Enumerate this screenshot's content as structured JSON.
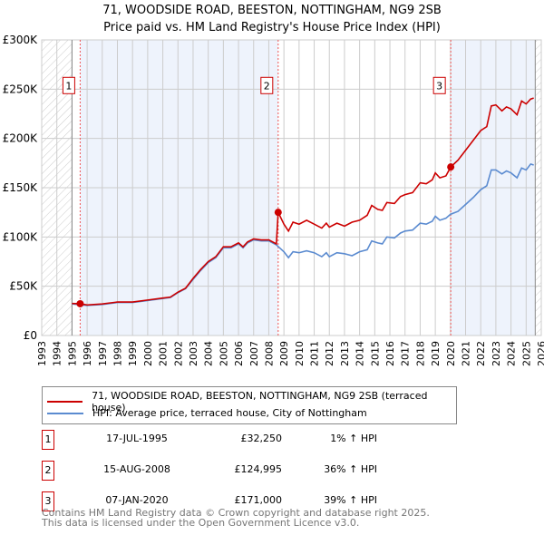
{
  "title": "71, WOODSIDE ROAD, BEESTON, NOTTINGHAM, NG9 2SB",
  "subtitle": "Price paid vs. HM Land Registry's House Price Index (HPI)",
  "chart_data": {
    "type": "line",
    "xlim": [
      1993,
      2026
    ],
    "ylim": [
      0,
      300000
    ],
    "yticks": [
      {
        "v": 0,
        "label": "£0"
      },
      {
        "v": 50000,
        "label": "£50K"
      },
      {
        "v": 100000,
        "label": "£100K"
      },
      {
        "v": 150000,
        "label": "£150K"
      },
      {
        "v": 200000,
        "label": "£200K"
      },
      {
        "v": 250000,
        "label": "£250K"
      },
      {
        "v": 300000,
        "label": "£300K"
      }
    ],
    "xticks": [
      "1993",
      "1994",
      "1995",
      "1996",
      "1997",
      "1998",
      "1999",
      "2000",
      "2001",
      "2002",
      "2003",
      "2004",
      "2005",
      "2006",
      "2007",
      "2008",
      "2009",
      "2010",
      "2011",
      "2012",
      "2013",
      "2014",
      "2015",
      "2016",
      "2017",
      "2018",
      "2019",
      "2020",
      "2021",
      "2022",
      "2023",
      "2024",
      "2025",
      "2026"
    ],
    "data_range": [
      1995,
      2025.6
    ],
    "shaded_bands": [
      [
        1995.54,
        2008.62
      ],
      [
        2020.02,
        2025.6
      ]
    ],
    "colors": {
      "price": "#cc0000",
      "hpi": "#5b8bd0",
      "band": "#eef3fc"
    },
    "series": [
      {
        "name": "71, WOODSIDE ROAD, BEESTON, NOTTINGHAM, NG9 2SB (terraced house)",
        "points": [
          [
            1995,
            32.5
          ],
          [
            1995.54,
            32.25
          ],
          [
            1996,
            31
          ],
          [
            1997,
            32
          ],
          [
            1998,
            34
          ],
          [
            1999,
            34
          ],
          [
            2000,
            36
          ],
          [
            2001,
            38
          ],
          [
            2001.5,
            39
          ],
          [
            2002,
            44
          ],
          [
            2002.5,
            48
          ],
          [
            2003,
            58
          ],
          [
            2003.5,
            67
          ],
          [
            2004,
            75
          ],
          [
            2004.5,
            80
          ],
          [
            2005,
            90
          ],
          [
            2005.5,
            90
          ],
          [
            2006,
            94
          ],
          [
            2006.3,
            90
          ],
          [
            2006.6,
            95
          ],
          [
            2007,
            98
          ],
          [
            2007.5,
            97
          ],
          [
            2008,
            97
          ],
          [
            2008.5,
            93
          ],
          [
            2008.62,
            125
          ],
          [
            2009,
            113
          ],
          [
            2009.3,
            106
          ],
          [
            2009.6,
            115
          ],
          [
            2010,
            113
          ],
          [
            2010.5,
            117
          ],
          [
            2011,
            113
          ],
          [
            2011.5,
            109
          ],
          [
            2011.8,
            114
          ],
          [
            2012,
            110
          ],
          [
            2012.5,
            114
          ],
          [
            2013,
            111
          ],
          [
            2013.5,
            115
          ],
          [
            2014,
            117
          ],
          [
            2014.5,
            122
          ],
          [
            2014.8,
            132
          ],
          [
            2015.2,
            128
          ],
          [
            2015.5,
            127
          ],
          [
            2015.8,
            135
          ],
          [
            2016.3,
            134
          ],
          [
            2016.7,
            141
          ],
          [
            2017,
            143
          ],
          [
            2017.5,
            145
          ],
          [
            2018,
            155
          ],
          [
            2018.4,
            154
          ],
          [
            2018.8,
            158
          ],
          [
            2019,
            165
          ],
          [
            2019.3,
            160
          ],
          [
            2019.7,
            162
          ],
          [
            2020.02,
            171
          ],
          [
            2020.5,
            178
          ],
          [
            2021,
            188
          ],
          [
            2021.5,
            198
          ],
          [
            2022,
            208
          ],
          [
            2022.4,
            212
          ],
          [
            2022.7,
            233
          ],
          [
            2023,
            234
          ],
          [
            2023.4,
            228
          ],
          [
            2023.7,
            232
          ],
          [
            2024,
            230
          ],
          [
            2024.4,
            224
          ],
          [
            2024.7,
            238
          ],
          [
            2025,
            235
          ],
          [
            2025.3,
            240
          ],
          [
            2025.5,
            241
          ]
        ]
      },
      {
        "name": "HPI: Average price, terraced house, City of Nottingham",
        "points": [
          [
            1995,
            32
          ],
          [
            1996,
            30.5
          ],
          [
            1997,
            31.5
          ],
          [
            1998,
            33.5
          ],
          [
            1999,
            33.5
          ],
          [
            2000,
            35.5
          ],
          [
            2001,
            37.5
          ],
          [
            2001.5,
            38.5
          ],
          [
            2002,
            43.5
          ],
          [
            2002.5,
            47.5
          ],
          [
            2003,
            57
          ],
          [
            2003.5,
            66
          ],
          [
            2004,
            74
          ],
          [
            2004.5,
            79
          ],
          [
            2005,
            89
          ],
          [
            2005.5,
            89
          ],
          [
            2006,
            93
          ],
          [
            2006.3,
            89
          ],
          [
            2006.6,
            94
          ],
          [
            2007,
            97
          ],
          [
            2007.5,
            96
          ],
          [
            2008,
            96
          ],
          [
            2008.5,
            92
          ],
          [
            2009,
            85
          ],
          [
            2009.3,
            79
          ],
          [
            2009.6,
            85
          ],
          [
            2010,
            84
          ],
          [
            2010.5,
            86
          ],
          [
            2011,
            84
          ],
          [
            2011.5,
            80
          ],
          [
            2011.8,
            84
          ],
          [
            2012,
            80
          ],
          [
            2012.5,
            84
          ],
          [
            2013,
            83
          ],
          [
            2013.5,
            81
          ],
          [
            2014,
            85
          ],
          [
            2014.5,
            87
          ],
          [
            2014.8,
            96
          ],
          [
            2015.2,
            94
          ],
          [
            2015.5,
            93
          ],
          [
            2015.8,
            100
          ],
          [
            2016.3,
            99
          ],
          [
            2016.7,
            104
          ],
          [
            2017,
            106
          ],
          [
            2017.5,
            107
          ],
          [
            2018,
            114
          ],
          [
            2018.4,
            113
          ],
          [
            2018.8,
            116
          ],
          [
            2019,
            121
          ],
          [
            2019.3,
            117
          ],
          [
            2019.7,
            119
          ],
          [
            2020,
            123
          ],
          [
            2020.5,
            126
          ],
          [
            2021,
            133
          ],
          [
            2021.5,
            140
          ],
          [
            2022,
            148
          ],
          [
            2022.4,
            152
          ],
          [
            2022.7,
            168
          ],
          [
            2023,
            168
          ],
          [
            2023.4,
            164
          ],
          [
            2023.7,
            167
          ],
          [
            2024,
            165
          ],
          [
            2024.4,
            160
          ],
          [
            2024.7,
            170
          ],
          [
            2025,
            168
          ],
          [
            2025.3,
            174
          ],
          [
            2025.5,
            173
          ]
        ]
      }
    ],
    "sales": [
      {
        "n": "1",
        "x": 1995.54,
        "y": 32.25
      },
      {
        "n": "2",
        "x": 2008.62,
        "y": 125
      },
      {
        "n": "3",
        "x": 2020.02,
        "y": 171
      }
    ]
  },
  "legend": {
    "price": "71, WOODSIDE ROAD, BEESTON, NOTTINGHAM, NG9 2SB (terraced house)",
    "hpi": "HPI: Average price, terraced house, City of Nottingham"
  },
  "table": [
    {
      "n": "1",
      "date": "17-JUL-1995",
      "price": "£32,250",
      "hpi": "1% ↑ HPI"
    },
    {
      "n": "2",
      "date": "15-AUG-2008",
      "price": "£124,995",
      "hpi": "36% ↑ HPI"
    },
    {
      "n": "3",
      "date": "07-JAN-2020",
      "price": "£171,000",
      "hpi": "39% ↑ HPI"
    }
  ],
  "footer": [
    "Contains HM Land Registry data © Crown copyright and database right 2025.",
    "This data is licensed under the Open Government Licence v3.0."
  ]
}
